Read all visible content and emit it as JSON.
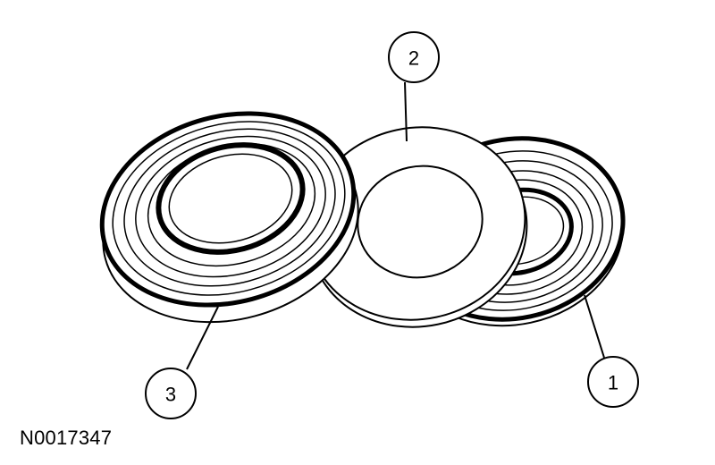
{
  "callouts": [
    {
      "number": "1"
    },
    {
      "number": "2"
    },
    {
      "number": "3"
    }
  ],
  "figure_id": "N0017347",
  "colors": {
    "line": "#000000",
    "background": "#ffffff"
  }
}
